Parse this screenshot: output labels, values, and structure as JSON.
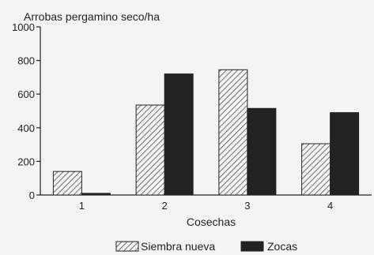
{
  "chart_data": {
    "type": "bar",
    "title": "Arrobas pergamino seco/ha",
    "xlabel": "Cosechas",
    "ylabel": "",
    "categories": [
      "1",
      "2",
      "3",
      "4"
    ],
    "series": [
      {
        "name": "Siembra nueva",
        "values": [
          140,
          535,
          745,
          305
        ]
      },
      {
        "name": "Zocas",
        "values": [
          10,
          720,
          515,
          490
        ]
      }
    ],
    "ylim": [
      0,
      1000
    ],
    "yticks": [
      0,
      200,
      400,
      600,
      800,
      1000
    ],
    "grid": false,
    "legend_position": "bottom",
    "colors": {
      "zocas": "#222222",
      "hatch": "#333333",
      "axis": "#222222"
    }
  }
}
